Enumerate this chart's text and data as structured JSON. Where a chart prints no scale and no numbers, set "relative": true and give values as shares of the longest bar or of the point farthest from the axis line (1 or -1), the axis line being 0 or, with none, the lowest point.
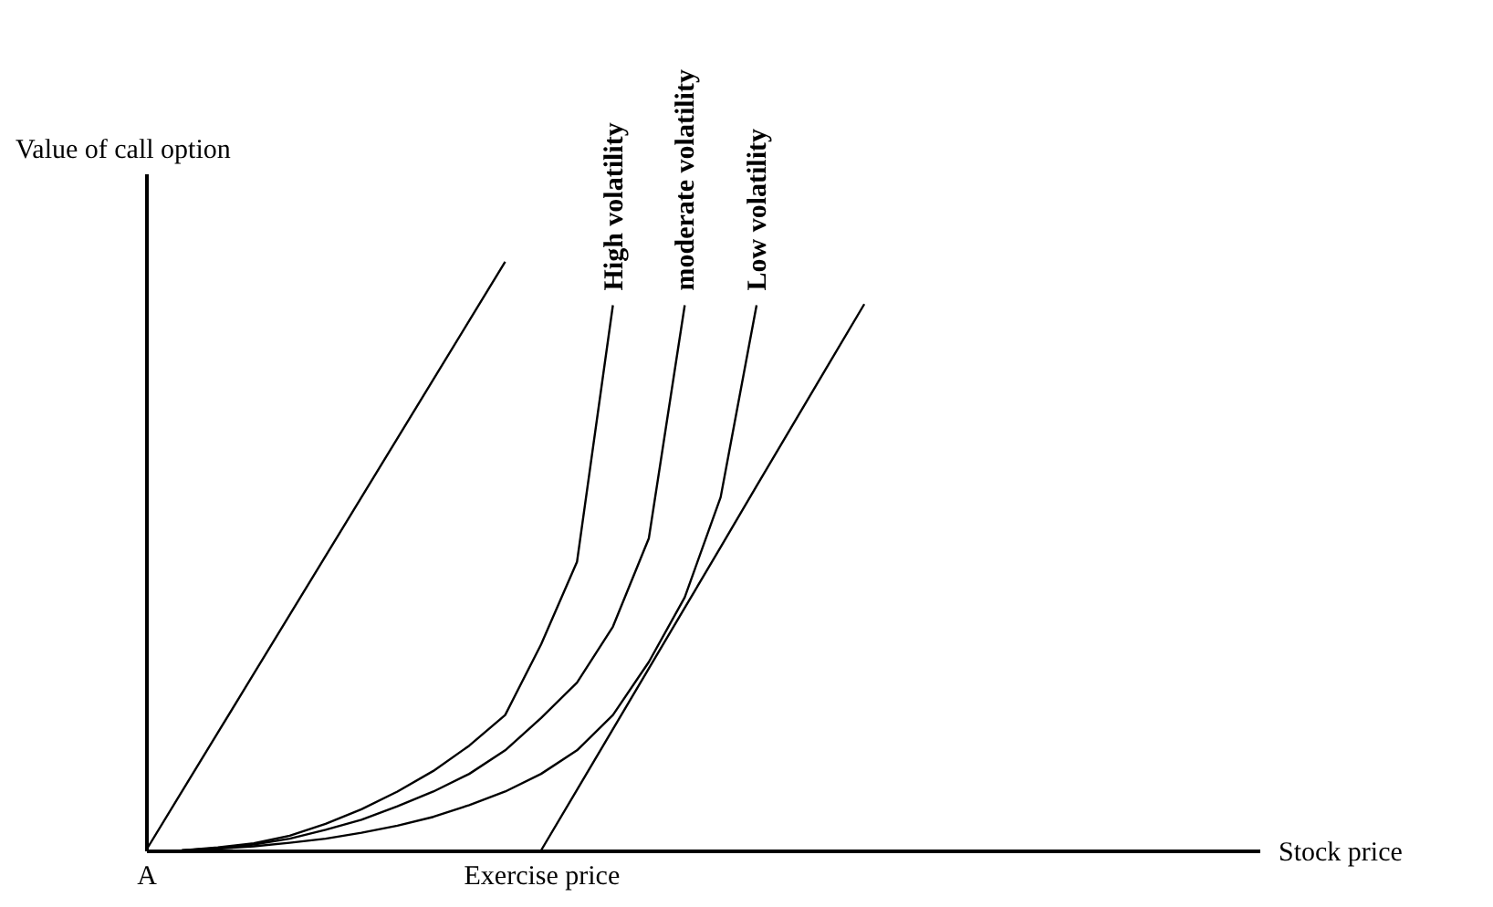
{
  "chart_data": {
    "type": "line",
    "relative": true,
    "xlabel": "Stock price",
    "ylabel": "Value of call option",
    "tick_labels": "x",
    "categories": [
      "A",
      null,
      null,
      null,
      null,
      null,
      null,
      null,
      null,
      null,
      null,
      "Exercise price",
      null,
      null,
      null,
      null,
      null,
      null,
      null,
      null,
      null,
      null,
      null,
      null,
      null,
      null,
      null,
      null,
      null,
      null,
      null,
      null
    ],
    "series": [
      {
        "color": "#000000",
        "values": [
          0,
          0.1,
          0.2,
          0.3,
          0.4,
          0.5,
          0.6,
          0.7,
          0.8,
          0.9,
          1,
          null,
          null,
          null,
          null,
          null,
          null,
          null,
          null,
          null,
          null,
          null,
          null,
          null,
          null,
          null,
          null,
          null,
          null,
          null,
          null,
          null
        ]
      },
      {
        "name": "High volatility",
        "color": "#000000",
        "values": [
          null,
          0,
          0.005,
          0.012,
          0.025,
          0.045,
          0.07,
          0.1,
          0.135,
          0.178,
          0.23,
          0.35,
          0.49,
          0.926,
          null,
          null,
          null,
          null,
          null,
          null,
          null,
          null,
          null,
          null,
          null,
          null,
          null,
          null,
          null,
          null,
          null,
          null
        ]
      },
      {
        "name": "moderate volatility",
        "color": "#000000",
        "values": [
          null,
          0,
          0.004,
          0.01,
          0.02,
          0.035,
          0.052,
          0.075,
          0.1,
          0.13,
          0.17,
          0.225,
          0.285,
          0.38,
          0.53,
          0.926,
          null,
          null,
          null,
          null,
          null,
          null,
          null,
          null,
          null,
          null,
          null,
          null,
          null,
          null,
          null,
          null
        ]
      },
      {
        "name": "Low volatility",
        "color": "#000000",
        "values": [
          null,
          0,
          0.003,
          0.007,
          0.013,
          0.02,
          0.03,
          0.042,
          0.057,
          0.077,
          0.1,
          0.13,
          0.17,
          0.23,
          0.32,
          0.43,
          0.6,
          0.926,
          null,
          null,
          null,
          null,
          null,
          null,
          null,
          null,
          null,
          null,
          null,
          null,
          null,
          null
        ]
      },
      {
        "color": "#000000",
        "values": [
          null,
          null,
          null,
          null,
          null,
          null,
          null,
          null,
          null,
          null,
          null,
          0,
          0.103,
          0.206,
          0.309,
          0.412,
          0.515,
          0.619,
          0.722,
          0.825,
          0.928,
          null,
          null,
          null,
          null,
          null,
          null,
          null,
          null,
          null,
          null,
          null
        ]
      }
    ]
  }
}
